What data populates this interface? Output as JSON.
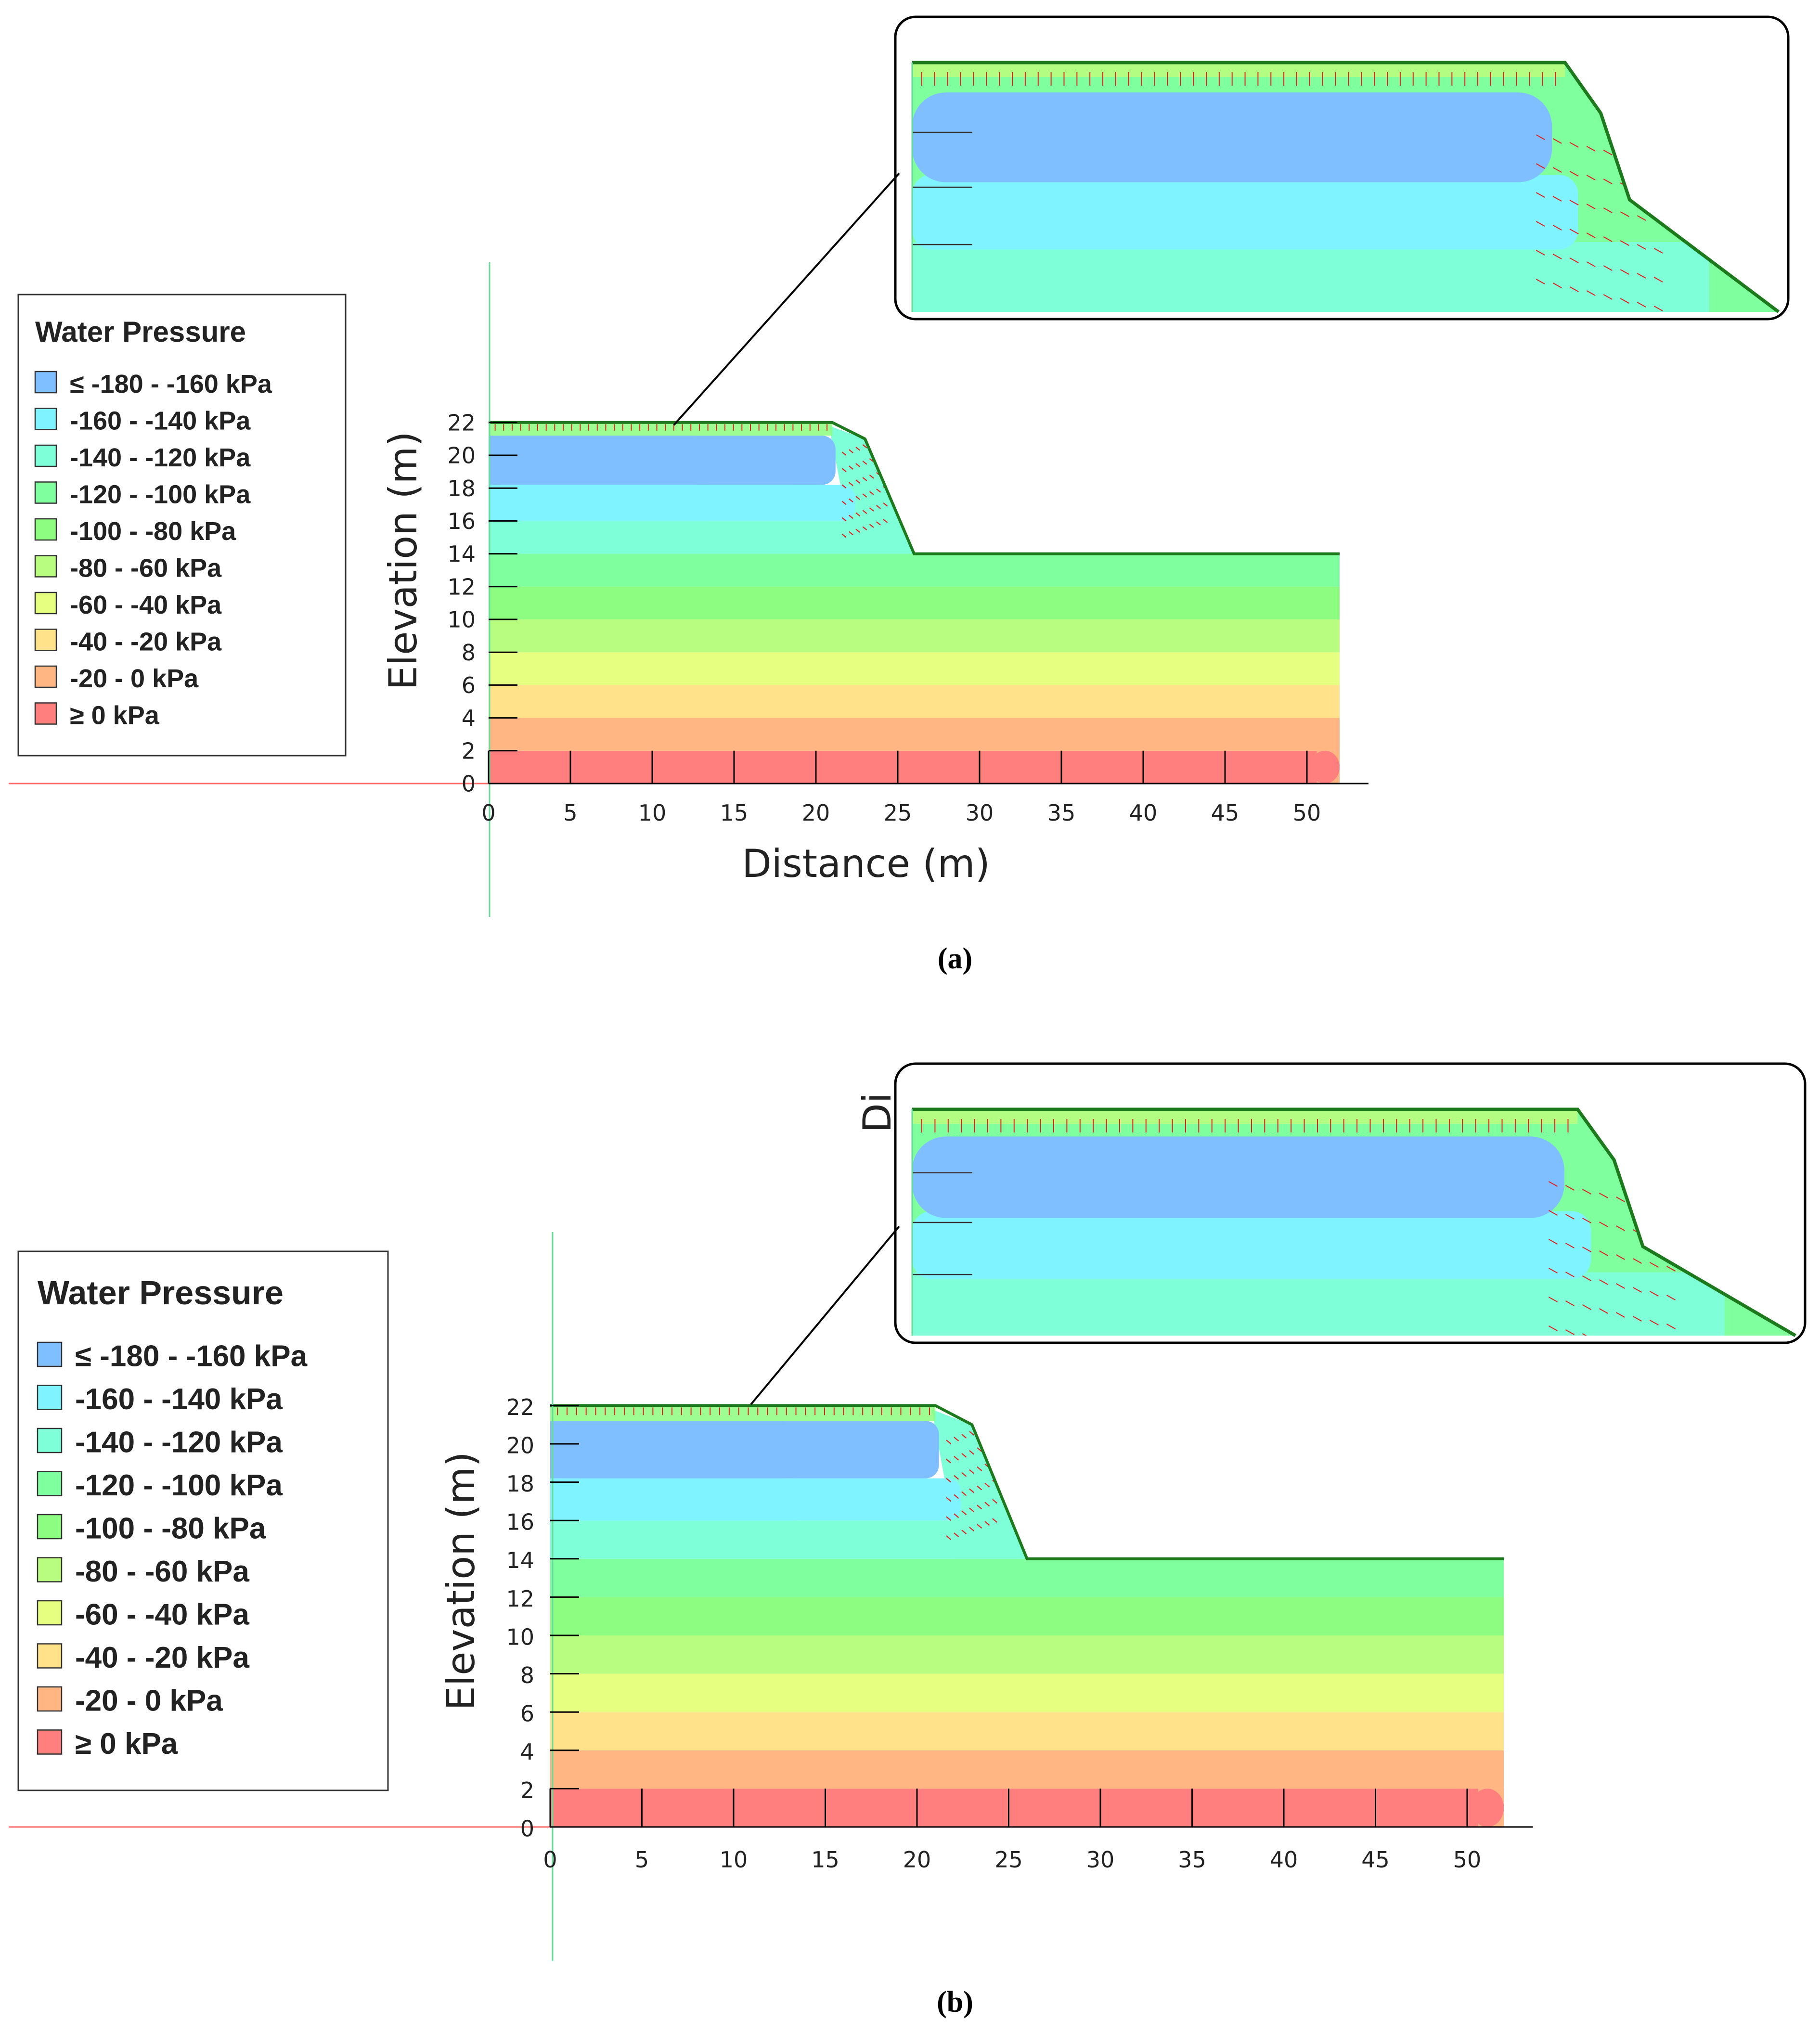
{
  "colors": {
    "bands": [
      "#7fbfff",
      "#7ff3ff",
      "#7fffd8",
      "#7fff9e",
      "#8cfd80",
      "#b9fd80",
      "#e6ff80",
      "#ffe28a",
      "#ffb683",
      "#ff7f7f"
    ],
    "boundary": "#1c7a1c",
    "vector": "#e02020",
    "axis": "#000000",
    "refline_h": "#ff6b6b",
    "refline_v": "#66dd99"
  },
  "chart_data": [
    {
      "type": "contour",
      "panel_label": "a",
      "caption": "(a)",
      "xlabel": "Distance (m)",
      "ylabel": "Elevation (m)",
      "xlim": [
        0,
        52
      ],
      "ylim": [
        0,
        22
      ],
      "xticks": [
        0,
        5,
        10,
        15,
        20,
        25,
        30,
        35,
        40,
        45,
        50
      ],
      "yticks": [
        0,
        2,
        4,
        6,
        8,
        10,
        12,
        14,
        16,
        18,
        20,
        22
      ],
      "geometry": [
        [
          0,
          22
        ],
        [
          21,
          22
        ],
        [
          23,
          21
        ],
        [
          26,
          14
        ],
        [
          52,
          14
        ]
      ],
      "series_label": "Water Pressure",
      "contour_levels": [
        {
          "label": "≤ -180 - -160 kPa",
          "color": "#7fbfff"
        },
        {
          "label": "-160 - -140 kPa",
          "color": "#7ff3ff"
        },
        {
          "label": "-140 - -120 kPa",
          "color": "#7fffd8"
        },
        {
          "label": "-120 - -100 kPa",
          "color": "#7fff9e"
        },
        {
          "label": "-100 - -80 kPa",
          "color": "#8cfd80"
        },
        {
          "label": "-80 - -60 kPa",
          "color": "#b9fd80"
        },
        {
          "label": "-60 - -40 kPa",
          "color": "#e6ff80"
        },
        {
          "label": "-40 - -20 kPa",
          "color": "#ffe28a"
        },
        {
          "label": "-20 - 0 kPa",
          "color": "#ffb683"
        },
        {
          "label": "≥ 0 kPa",
          "color": "#ff7f7f"
        }
      ],
      "bands": [
        {
          "y0": 0,
          "y1": 2,
          "level": 9
        },
        {
          "y0": 2,
          "y1": 4,
          "level": 8
        },
        {
          "y0": 4,
          "y1": 6,
          "level": 7
        },
        {
          "y0": 6,
          "y1": 8,
          "level": 6
        },
        {
          "y0": 8,
          "y1": 10,
          "level": 5
        },
        {
          "y0": 10,
          "y1": 12,
          "level": 4
        },
        {
          "y0": 12,
          "y1": 14,
          "level": 3
        },
        {
          "y0": 14,
          "y1": 16,
          "level": 2
        },
        {
          "y0": 16,
          "y1": 18.2,
          "level": 1
        },
        {
          "y0": 18.2,
          "y1": 21.2,
          "level": 0
        }
      ],
      "inset": "magnified view of slope crest region"
    },
    {
      "type": "contour",
      "panel_label": "b",
      "caption": "(b)",
      "xlabel": "",
      "ylabel": "Elevation (m)",
      "xlim": [
        0,
        52
      ],
      "ylim": [
        0,
        22
      ],
      "xticks": [
        0,
        5,
        10,
        15,
        20,
        25,
        30,
        35,
        40,
        45,
        50
      ],
      "yticks": [
        0,
        2,
        4,
        6,
        8,
        10,
        12,
        14,
        16,
        18,
        20,
        22
      ],
      "geometry": [
        [
          0,
          22
        ],
        [
          21,
          22
        ],
        [
          23,
          21
        ],
        [
          26,
          14
        ],
        [
          52,
          14
        ]
      ],
      "series_label": "Water Pressure",
      "contour_levels": [
        {
          "label": "≤ -180 - -160 kPa",
          "color": "#7fbfff"
        },
        {
          "label": "-160 - -140 kPa",
          "color": "#7ff3ff"
        },
        {
          "label": "-140 - -120 kPa",
          "color": "#7fffd8"
        },
        {
          "label": "-120 - -100 kPa",
          "color": "#7fff9e"
        },
        {
          "label": "-100 - -80 kPa",
          "color": "#8cfd80"
        },
        {
          "label": "-80 - -60 kPa",
          "color": "#b9fd80"
        },
        {
          "label": "-60 - -40 kPa",
          "color": "#e6ff80"
        },
        {
          "label": "-40 - -20 kPa",
          "color": "#ffe28a"
        },
        {
          "label": "-20 - 0 kPa",
          "color": "#ffb683"
        },
        {
          "label": "≥ 0 kPa",
          "color": "#ff7f7f"
        }
      ],
      "bands": [
        {
          "y0": 0,
          "y1": 2,
          "level": 9
        },
        {
          "y0": 2,
          "y1": 4,
          "level": 8
        },
        {
          "y0": 4,
          "y1": 6,
          "level": 7
        },
        {
          "y0": 6,
          "y1": 8,
          "level": 6
        },
        {
          "y0": 8,
          "y1": 10,
          "level": 5
        },
        {
          "y0": 10,
          "y1": 12,
          "level": 4
        },
        {
          "y0": 12,
          "y1": 14,
          "level": 3
        },
        {
          "y0": 14,
          "y1": 16,
          "level": 2
        },
        {
          "y0": 16,
          "y1": 18.2,
          "level": 1
        },
        {
          "y0": 18.2,
          "y1": 21.2,
          "level": 0
        }
      ],
      "inset": "magnified view of slope crest region",
      "clipped_text": "Di"
    }
  ]
}
